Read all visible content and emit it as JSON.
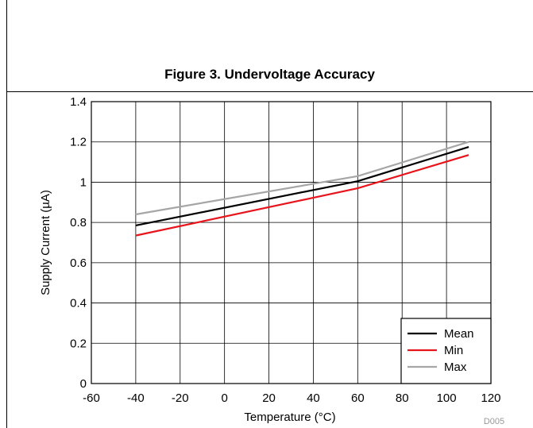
{
  "figure": {
    "caption": "Figure 3. Undervoltage Accuracy",
    "code": "D005"
  },
  "chart_data": {
    "type": "line",
    "title": "Figure 3. Undervoltage Accuracy",
    "xlabel": "Temperature (°C)",
    "ylabel": "Supply Current (µA)",
    "xlim": [
      -60,
      120
    ],
    "ylim": [
      0,
      1.4
    ],
    "x_ticks": [
      -60,
      -40,
      -20,
      0,
      20,
      40,
      60,
      80,
      100,
      120
    ],
    "y_ticks": [
      0,
      0.2,
      0.4,
      0.6,
      0.8,
      1,
      1.2,
      1.4
    ],
    "x_tick_labels": [
      "-60",
      "-40",
      "-20",
      "0",
      "20",
      "40",
      "60",
      "80",
      "100",
      "120"
    ],
    "y_tick_labels": [
      "0",
      "0.2",
      "0.4",
      "0.6",
      "0.8",
      "1",
      "1.2",
      "1.4"
    ],
    "grid": true,
    "legend_position": "bottom-right",
    "x": [
      -40,
      60,
      110
    ],
    "series": [
      {
        "name": "Mean",
        "color": "#000000",
        "values": [
          0.785,
          1.005,
          1.175
        ]
      },
      {
        "name": "Min",
        "color": "#e8141c",
        "values": [
          0.735,
          0.97,
          1.135
        ]
      },
      {
        "name": "Max",
        "color": "#a6a6a6",
        "values": [
          0.84,
          1.03,
          1.2
        ]
      }
    ]
  }
}
